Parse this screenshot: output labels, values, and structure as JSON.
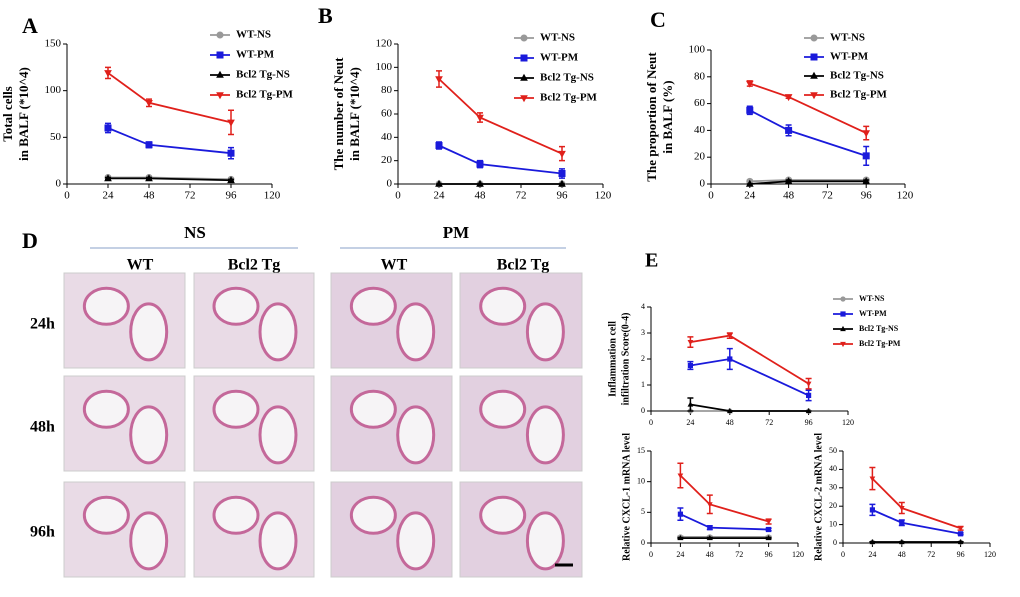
{
  "chart_data": [
    {
      "type": "line",
      "panel": "A",
      "ylabel": [
        "Total  cells",
        "in BALF (*10^4)"
      ],
      "x": [
        24,
        48,
        96
      ],
      "xlim": [
        0,
        120
      ],
      "xticks": [
        0,
        24,
        48,
        72,
        96,
        120
      ],
      "ylim": [
        0,
        150
      ],
      "yticks": [
        0,
        50,
        100,
        150
      ],
      "legend": "upper right",
      "series": [
        {
          "name": "WT-NS",
          "color": "#999999",
          "marker": "circle",
          "values": [
            7,
            7,
            5
          ],
          "errors": [
            1,
            1,
            1
          ]
        },
        {
          "name": "WT-PM",
          "color": "#1a1adb",
          "marker": "square",
          "values": [
            60,
            42,
            33
          ],
          "errors": [
            5,
            3,
            6
          ]
        },
        {
          "name": "Bcl2 Tg-NS",
          "color": "#000000",
          "marker": "triangle-up",
          "values": [
            6,
            6,
            4
          ],
          "errors": [
            1,
            1,
            1
          ]
        },
        {
          "name": "Bcl2 Tg-PM",
          "color": "#e0201b",
          "marker": "triangle-down",
          "values": [
            119,
            87,
            66
          ],
          "errors": [
            6,
            4,
            13
          ]
        }
      ]
    },
    {
      "type": "line",
      "panel": "B",
      "ylabel": [
        "The number of Neut",
        "in BALF (*10^4)"
      ],
      "x": [
        24,
        48,
        96
      ],
      "xlim": [
        0,
        120
      ],
      "xticks": [
        0,
        24,
        48,
        72,
        96,
        120
      ],
      "ylim": [
        0,
        120
      ],
      "yticks": [
        0,
        20,
        40,
        60,
        80,
        100,
        120
      ],
      "legend": "upper right",
      "series": [
        {
          "name": "WT-NS",
          "color": "#999999",
          "marker": "circle",
          "values": [
            0,
            0,
            0
          ],
          "errors": [
            0,
            0,
            0
          ]
        },
        {
          "name": "WT-PM",
          "color": "#1a1adb",
          "marker": "square",
          "values": [
            33,
            17,
            9
          ],
          "errors": [
            3,
            3,
            4
          ]
        },
        {
          "name": "Bcl2 Tg-NS",
          "color": "#000000",
          "marker": "triangle-up",
          "values": [
            0,
            0,
            0
          ],
          "errors": [
            0,
            0,
            0
          ]
        },
        {
          "name": "Bcl2 Tg-PM",
          "color": "#e0201b",
          "marker": "triangle-down",
          "values": [
            90,
            57,
            26
          ],
          "errors": [
            7,
            4,
            6
          ]
        }
      ]
    },
    {
      "type": "line",
      "panel": "C",
      "ylabel": [
        "The proportion of Neut",
        "in BALF (%)"
      ],
      "x": [
        24,
        48,
        96
      ],
      "xlim": [
        0,
        120
      ],
      "xticks": [
        0,
        24,
        48,
        72,
        96,
        120
      ],
      "ylim": [
        0,
        100
      ],
      "yticks": [
        0,
        20,
        40,
        60,
        80,
        100
      ],
      "legend": "upper right",
      "series": [
        {
          "name": "WT-NS",
          "color": "#999999",
          "marker": "circle",
          "values": [
            2,
            3,
            3
          ],
          "errors": [
            1,
            1,
            1
          ]
        },
        {
          "name": "WT-PM",
          "color": "#1a1adb",
          "marker": "square",
          "values": [
            55,
            40,
            21
          ],
          "errors": [
            3,
            4,
            7
          ]
        },
        {
          "name": "Bcl2 Tg-NS",
          "color": "#000000",
          "marker": "triangle-up",
          "values": [
            0,
            2,
            2
          ],
          "errors": [
            0,
            1,
            1
          ]
        },
        {
          "name": "Bcl2 Tg-PM",
          "color": "#e0201b",
          "marker": "triangle-down",
          "values": [
            75,
            65,
            38
          ],
          "errors": [
            2,
            1,
            5
          ]
        }
      ]
    },
    {
      "type": "line",
      "panel": "E",
      "ylabel": [
        "Inflammation cell",
        "infiltration Score(0-4)"
      ],
      "x": [
        24,
        48,
        96
      ],
      "xlim": [
        0,
        120
      ],
      "xticks": [
        0,
        24,
        48,
        72,
        96,
        120
      ],
      "ylim": [
        0,
        4
      ],
      "yticks": [
        0,
        1,
        2,
        3,
        4
      ],
      "legend": "upper right",
      "series": [
        {
          "name": "WT-NS",
          "color": "#999999",
          "marker": "circle",
          "values": [
            0,
            0,
            0
          ],
          "errors": [
            0,
            0,
            0
          ]
        },
        {
          "name": "WT-PM",
          "color": "#1a1adb",
          "marker": "square",
          "values": [
            1.75,
            2,
            0.6
          ],
          "errors": [
            0.15,
            0.4,
            0.2
          ]
        },
        {
          "name": "Bcl2 Tg-NS",
          "color": "#000000",
          "marker": "triangle-up",
          "values": [
            0.25,
            0,
            0
          ],
          "errors": [
            0.25,
            0,
            0
          ]
        },
        {
          "name": "Bcl2 Tg-PM",
          "color": "#e0201b",
          "marker": "triangle-down",
          "values": [
            2.65,
            2.9,
            1.05
          ],
          "errors": [
            0.2,
            0.1,
            0.2
          ]
        }
      ]
    },
    {
      "type": "line",
      "ylabel": [
        "Relative CXCL-1 mRNA level"
      ],
      "x": [
        24,
        48,
        96
      ],
      "xlim": [
        0,
        120
      ],
      "xticks": [
        0,
        24,
        48,
        72,
        96,
        120
      ],
      "ylim": [
        0,
        15
      ],
      "yticks": [
        0,
        5,
        10,
        15
      ],
      "legend": false,
      "series": [
        {
          "color": "#999999",
          "marker": "circle",
          "values": [
            1,
            1,
            1
          ],
          "errors": [
            0.1,
            0.1,
            0.1
          ]
        },
        {
          "color": "#1a1adb",
          "marker": "square",
          "values": [
            4.7,
            2.5,
            2.2
          ],
          "errors": [
            1,
            0.3,
            0.2
          ]
        },
        {
          "color": "#000000",
          "marker": "triangle-up",
          "values": [
            0.8,
            0.8,
            0.8
          ],
          "errors": [
            0.1,
            0.1,
            0.1
          ]
        },
        {
          "color": "#e0201b",
          "marker": "triangle-down",
          "values": [
            11,
            6.3,
            3.5
          ],
          "errors": [
            2,
            1.5,
            0.4
          ]
        }
      ]
    },
    {
      "type": "line",
      "ylabel": [
        "Relative CXCL-2 mRNA level"
      ],
      "x": [
        24,
        48,
        96
      ],
      "xlim": [
        0,
        120
      ],
      "xticks": [
        0,
        24,
        48,
        72,
        96,
        120
      ],
      "ylim": [
        0,
        50
      ],
      "yticks": [
        0,
        10,
        20,
        30,
        40,
        50
      ],
      "legend": false,
      "series": [
        {
          "color": "#999999",
          "marker": "circle",
          "values": [
            0.5,
            0.5,
            0.5
          ],
          "errors": [
            0.2,
            0.2,
            0.2
          ]
        },
        {
          "color": "#1a1adb",
          "marker": "square",
          "values": [
            18,
            11,
            5
          ],
          "errors": [
            3,
            1.5,
            0.5
          ]
        },
        {
          "color": "#000000",
          "marker": "triangle-up",
          "values": [
            0.5,
            0.5,
            0.5
          ],
          "errors": [
            0.2,
            0.2,
            0.2
          ]
        },
        {
          "color": "#e0201b",
          "marker": "triangle-down",
          "values": [
            35,
            19,
            8
          ],
          "errors": [
            6,
            3,
            1
          ]
        }
      ]
    }
  ],
  "panel_d": {
    "label": "D",
    "groups": [
      "NS",
      "PM"
    ],
    "columns": [
      "WT",
      "Bcl2 Tg",
      "WT",
      "Bcl2 Tg"
    ],
    "rows": [
      "24h",
      "48h",
      "96h"
    ]
  }
}
